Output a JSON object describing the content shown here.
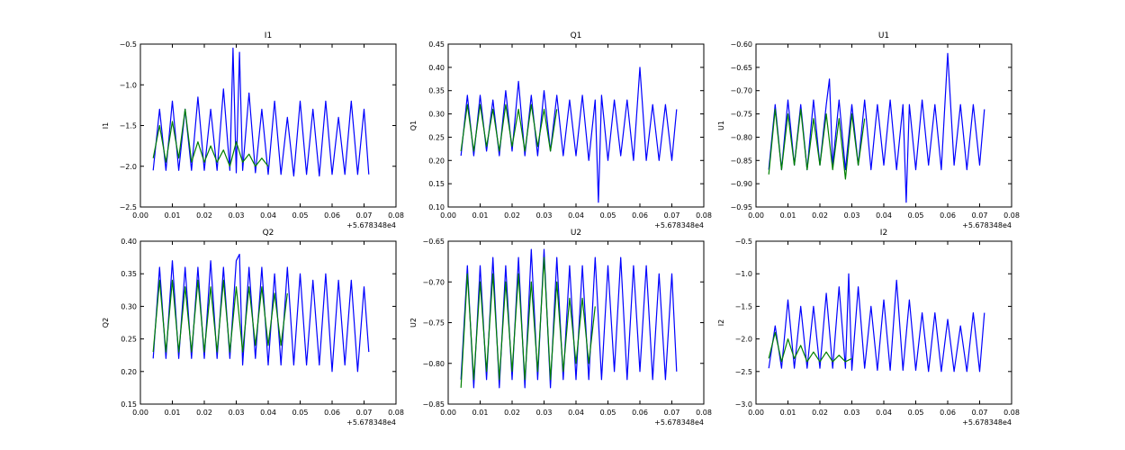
{
  "figure": {
    "background": "#ffffff"
  },
  "chart_data": [
    {
      "type": "line",
      "title": "I1",
      "ylabel": "I1",
      "xlim": [
        0.0,
        0.08
      ],
      "ylim": [
        -2.5,
        -0.5
      ],
      "xticks": [
        0.0,
        0.01,
        0.02,
        0.03,
        0.04,
        0.05,
        0.06,
        0.07,
        0.08
      ],
      "xtick_labels": [
        "0.00",
        "0.01",
        "0.02",
        "0.03",
        "0.04",
        "0.05",
        "0.06",
        "0.07",
        "0.08"
      ],
      "yticks": [
        -2.5,
        -2.0,
        -1.5,
        -1.0,
        -0.5
      ],
      "ytick_labels": [
        "−2.5",
        "−2.0",
        "−1.5",
        "−1.0",
        "−0.5"
      ],
      "x_offset_label": "+5.678348e4",
      "series": [
        {
          "color": "#0000ff",
          "x": [
            0.004,
            0.006,
            0.008,
            0.01,
            0.012,
            0.014,
            0.016,
            0.018,
            0.02,
            0.022,
            0.024,
            0.026,
            0.028,
            0.029,
            0.03,
            0.031,
            0.032,
            0.034,
            0.036,
            0.038,
            0.04,
            0.042,
            0.044,
            0.046,
            0.048,
            0.05,
            0.052,
            0.054,
            0.056,
            0.058,
            0.06,
            0.062,
            0.064,
            0.066,
            0.068,
            0.07,
            0.0715
          ],
          "y": [
            -2.05,
            -1.3,
            -2.05,
            -1.2,
            -2.05,
            -1.3,
            -2.05,
            -1.15,
            -2.05,
            -1.3,
            -2.05,
            -1.05,
            -2.05,
            -0.55,
            -2.08,
            -0.6,
            -2.05,
            -1.1,
            -2.08,
            -1.3,
            -2.1,
            -1.2,
            -2.1,
            -1.4,
            -2.12,
            -1.2,
            -2.1,
            -1.3,
            -2.12,
            -1.2,
            -2.1,
            -1.4,
            -2.1,
            -1.2,
            -2.1,
            -1.3,
            -2.1
          ]
        },
        {
          "color": "#008000",
          "x": [
            0.004,
            0.006,
            0.008,
            0.01,
            0.012,
            0.014,
            0.016,
            0.018,
            0.02,
            0.022,
            0.024,
            0.026,
            0.028,
            0.03,
            0.032,
            0.034,
            0.036,
            0.038,
            0.04
          ],
          "y": [
            -1.9,
            -1.5,
            -1.95,
            -1.45,
            -1.9,
            -1.3,
            -1.95,
            -1.7,
            -1.95,
            -1.75,
            -1.95,
            -1.8,
            -2.0,
            -1.7,
            -1.95,
            -1.85,
            -2.0,
            -1.9,
            -2.0
          ]
        }
      ]
    },
    {
      "type": "line",
      "title": "Q1",
      "ylabel": "Q1",
      "xlim": [
        0.0,
        0.08
      ],
      "ylim": [
        0.1,
        0.45
      ],
      "xticks": [
        0.0,
        0.01,
        0.02,
        0.03,
        0.04,
        0.05,
        0.06,
        0.07,
        0.08
      ],
      "xtick_labels": [
        "0.00",
        "0.01",
        "0.02",
        "0.03",
        "0.04",
        "0.05",
        "0.06",
        "0.07",
        "0.08"
      ],
      "yticks": [
        0.1,
        0.15,
        0.2,
        0.25,
        0.3,
        0.35,
        0.4,
        0.45
      ],
      "ytick_labels": [
        "0.10",
        "0.15",
        "0.20",
        "0.25",
        "0.30",
        "0.35",
        "0.40",
        "0.45"
      ],
      "x_offset_label": "+5.678348e4",
      "series": [
        {
          "color": "#0000ff",
          "x": [
            0.004,
            0.006,
            0.008,
            0.01,
            0.012,
            0.014,
            0.016,
            0.018,
            0.02,
            0.022,
            0.024,
            0.026,
            0.028,
            0.03,
            0.032,
            0.034,
            0.036,
            0.038,
            0.04,
            0.042,
            0.044,
            0.046,
            0.047,
            0.048,
            0.05,
            0.052,
            0.054,
            0.056,
            0.058,
            0.06,
            0.062,
            0.064,
            0.066,
            0.068,
            0.07,
            0.0715
          ],
          "y": [
            0.21,
            0.34,
            0.21,
            0.34,
            0.22,
            0.33,
            0.21,
            0.35,
            0.22,
            0.37,
            0.21,
            0.34,
            0.21,
            0.35,
            0.22,
            0.34,
            0.21,
            0.33,
            0.21,
            0.34,
            0.2,
            0.33,
            0.11,
            0.34,
            0.2,
            0.33,
            0.21,
            0.33,
            0.2,
            0.4,
            0.2,
            0.32,
            0.2,
            0.32,
            0.2,
            0.31
          ]
        },
        {
          "color": "#008000",
          "x": [
            0.004,
            0.006,
            0.008,
            0.01,
            0.012,
            0.014,
            0.016,
            0.018,
            0.02,
            0.022,
            0.024,
            0.026,
            0.028,
            0.03,
            0.032,
            0.034
          ],
          "y": [
            0.22,
            0.32,
            0.22,
            0.32,
            0.23,
            0.31,
            0.22,
            0.32,
            0.23,
            0.31,
            0.22,
            0.32,
            0.23,
            0.31,
            0.22,
            0.31
          ]
        }
      ]
    },
    {
      "type": "line",
      "title": "U1",
      "ylabel": "U1",
      "xlim": [
        0.0,
        0.08
      ],
      "ylim": [
        -0.95,
        -0.6
      ],
      "xticks": [
        0.0,
        0.01,
        0.02,
        0.03,
        0.04,
        0.05,
        0.06,
        0.07,
        0.08
      ],
      "xtick_labels": [
        "0.00",
        "0.01",
        "0.02",
        "0.03",
        "0.04",
        "0.05",
        "0.06",
        "0.07",
        "0.08"
      ],
      "yticks": [
        -0.95,
        -0.9,
        -0.85,
        -0.8,
        -0.75,
        -0.7,
        -0.65,
        -0.6
      ],
      "ytick_labels": [
        "−0.95",
        "−0.90",
        "−0.85",
        "−0.80",
        "−0.75",
        "−0.70",
        "−0.65",
        "−0.60"
      ],
      "x_offset_label": "+5.678348e4",
      "series": [
        {
          "color": "#0000ff",
          "x": [
            0.004,
            0.006,
            0.008,
            0.01,
            0.012,
            0.014,
            0.016,
            0.018,
            0.02,
            0.022,
            0.023,
            0.024,
            0.026,
            0.028,
            0.03,
            0.032,
            0.034,
            0.036,
            0.038,
            0.04,
            0.042,
            0.044,
            0.046,
            0.047,
            0.048,
            0.05,
            0.052,
            0.054,
            0.056,
            0.058,
            0.06,
            0.062,
            0.064,
            0.066,
            0.068,
            0.07,
            0.0715
          ],
          "y": [
            -0.87,
            -0.73,
            -0.87,
            -0.72,
            -0.86,
            -0.73,
            -0.87,
            -0.72,
            -0.86,
            -0.73,
            -0.675,
            -0.86,
            -0.72,
            -0.87,
            -0.73,
            -0.86,
            -0.72,
            -0.87,
            -0.73,
            -0.86,
            -0.72,
            -0.87,
            -0.73,
            -0.94,
            -0.73,
            -0.87,
            -0.72,
            -0.86,
            -0.73,
            -0.87,
            -0.62,
            -0.86,
            -0.73,
            -0.87,
            -0.73,
            -0.86,
            -0.74
          ]
        },
        {
          "color": "#008000",
          "x": [
            0.004,
            0.006,
            0.008,
            0.01,
            0.012,
            0.014,
            0.016,
            0.018,
            0.02,
            0.022,
            0.024,
            0.026,
            0.028,
            0.03,
            0.032,
            0.034
          ],
          "y": [
            -0.88,
            -0.74,
            -0.87,
            -0.75,
            -0.86,
            -0.74,
            -0.87,
            -0.76,
            -0.86,
            -0.75,
            -0.87,
            -0.76,
            -0.89,
            -0.75,
            -0.86,
            -0.76
          ]
        }
      ]
    },
    {
      "type": "line",
      "title": "Q2",
      "ylabel": "Q2",
      "xlim": [
        0.0,
        0.08
      ],
      "ylim": [
        0.15,
        0.4
      ],
      "xticks": [
        0.0,
        0.01,
        0.02,
        0.03,
        0.04,
        0.05,
        0.06,
        0.07,
        0.08
      ],
      "xtick_labels": [
        "0.00",
        "0.01",
        "0.02",
        "0.03",
        "0.04",
        "0.05",
        "0.06",
        "0.07",
        "0.08"
      ],
      "yticks": [
        0.15,
        0.2,
        0.25,
        0.3,
        0.35,
        0.4
      ],
      "ytick_labels": [
        "0.15",
        "0.20",
        "0.25",
        "0.30",
        "0.35",
        "0.40"
      ],
      "x_offset_label": "+5.678348e4",
      "series": [
        {
          "color": "#0000ff",
          "x": [
            0.004,
            0.006,
            0.008,
            0.01,
            0.012,
            0.014,
            0.016,
            0.018,
            0.02,
            0.022,
            0.024,
            0.026,
            0.028,
            0.03,
            0.031,
            0.032,
            0.034,
            0.036,
            0.038,
            0.04,
            0.042,
            0.044,
            0.046,
            0.048,
            0.05,
            0.052,
            0.054,
            0.056,
            0.058,
            0.06,
            0.062,
            0.064,
            0.066,
            0.068,
            0.07,
            0.0715
          ],
          "y": [
            0.22,
            0.36,
            0.22,
            0.37,
            0.22,
            0.36,
            0.22,
            0.36,
            0.22,
            0.37,
            0.22,
            0.36,
            0.22,
            0.37,
            0.38,
            0.21,
            0.36,
            0.22,
            0.36,
            0.21,
            0.35,
            0.21,
            0.36,
            0.21,
            0.35,
            0.21,
            0.34,
            0.21,
            0.35,
            0.2,
            0.34,
            0.21,
            0.34,
            0.2,
            0.33,
            0.23
          ]
        },
        {
          "color": "#008000",
          "x": [
            0.004,
            0.006,
            0.008,
            0.01,
            0.012,
            0.014,
            0.016,
            0.018,
            0.02,
            0.022,
            0.024,
            0.026,
            0.028,
            0.03,
            0.032,
            0.034,
            0.036,
            0.038,
            0.04,
            0.042,
            0.044,
            0.046
          ],
          "y": [
            0.23,
            0.34,
            0.23,
            0.34,
            0.23,
            0.33,
            0.23,
            0.34,
            0.23,
            0.33,
            0.23,
            0.34,
            0.23,
            0.33,
            0.23,
            0.33,
            0.24,
            0.33,
            0.24,
            0.32,
            0.24,
            0.32
          ]
        }
      ]
    },
    {
      "type": "line",
      "title": "U2",
      "ylabel": "U2",
      "xlim": [
        0.0,
        0.08
      ],
      "ylim": [
        -0.85,
        -0.65
      ],
      "xticks": [
        0.0,
        0.01,
        0.02,
        0.03,
        0.04,
        0.05,
        0.06,
        0.07,
        0.08
      ],
      "xtick_labels": [
        "0.00",
        "0.01",
        "0.02",
        "0.03",
        "0.04",
        "0.05",
        "0.06",
        "0.07",
        "0.08"
      ],
      "yticks": [
        -0.85,
        -0.8,
        -0.75,
        -0.7,
        -0.65
      ],
      "ytick_labels": [
        "−0.85",
        "−0.80",
        "−0.75",
        "−0.70",
        "−0.65"
      ],
      "x_offset_label": "+5.678348e4",
      "series": [
        {
          "color": "#0000ff",
          "x": [
            0.004,
            0.006,
            0.008,
            0.01,
            0.012,
            0.014,
            0.016,
            0.018,
            0.02,
            0.022,
            0.024,
            0.026,
            0.028,
            0.03,
            0.032,
            0.034,
            0.036,
            0.038,
            0.04,
            0.042,
            0.044,
            0.046,
            0.048,
            0.05,
            0.052,
            0.054,
            0.056,
            0.058,
            0.06,
            0.062,
            0.064,
            0.066,
            0.068,
            0.07,
            0.0715
          ],
          "y": [
            -0.82,
            -0.68,
            -0.83,
            -0.68,
            -0.82,
            -0.67,
            -0.83,
            -0.68,
            -0.82,
            -0.67,
            -0.83,
            -0.66,
            -0.82,
            -0.66,
            -0.83,
            -0.67,
            -0.82,
            -0.68,
            -0.82,
            -0.68,
            -0.82,
            -0.67,
            -0.82,
            -0.68,
            -0.81,
            -0.67,
            -0.82,
            -0.68,
            -0.81,
            -0.68,
            -0.82,
            -0.69,
            -0.82,
            -0.69,
            -0.81
          ]
        },
        {
          "color": "#008000",
          "x": [
            0.004,
            0.006,
            0.008,
            0.01,
            0.012,
            0.014,
            0.016,
            0.018,
            0.02,
            0.022,
            0.024,
            0.026,
            0.028,
            0.03,
            0.032,
            0.034,
            0.036,
            0.038,
            0.04,
            0.042,
            0.044,
            0.046
          ],
          "y": [
            -0.83,
            -0.69,
            -0.82,
            -0.7,
            -0.81,
            -0.69,
            -0.82,
            -0.7,
            -0.81,
            -0.69,
            -0.82,
            -0.7,
            -0.81,
            -0.67,
            -0.82,
            -0.7,
            -0.81,
            -0.72,
            -0.8,
            -0.72,
            -0.8,
            -0.73
          ]
        }
      ]
    },
    {
      "type": "line",
      "title": "I2",
      "ylabel": "I2",
      "xlim": [
        0.0,
        0.08
      ],
      "ylim": [
        -3.0,
        -0.5
      ],
      "xticks": [
        0.0,
        0.01,
        0.02,
        0.03,
        0.04,
        0.05,
        0.06,
        0.07,
        0.08
      ],
      "xtick_labels": [
        "0.00",
        "0.01",
        "0.02",
        "0.03",
        "0.04",
        "0.05",
        "0.06",
        "0.07",
        "0.08"
      ],
      "yticks": [
        -3.0,
        -2.5,
        -2.0,
        -1.5,
        -1.0,
        -0.5
      ],
      "ytick_labels": [
        "−3.0",
        "−2.5",
        "−2.0",
        "−1.5",
        "−1.0",
        "−0.5"
      ],
      "x_offset_label": "+5.678348e4",
      "series": [
        {
          "color": "#0000ff",
          "x": [
            0.004,
            0.006,
            0.008,
            0.01,
            0.012,
            0.014,
            0.016,
            0.018,
            0.02,
            0.022,
            0.024,
            0.026,
            0.028,
            0.029,
            0.03,
            0.032,
            0.034,
            0.036,
            0.038,
            0.04,
            0.042,
            0.044,
            0.046,
            0.048,
            0.05,
            0.052,
            0.054,
            0.056,
            0.058,
            0.06,
            0.062,
            0.064,
            0.066,
            0.068,
            0.07,
            0.0715
          ],
          "y": [
            -2.45,
            -1.8,
            -2.45,
            -1.4,
            -2.45,
            -1.5,
            -2.45,
            -1.5,
            -2.45,
            -1.3,
            -2.45,
            -1.2,
            -2.45,
            -1.0,
            -2.48,
            -1.2,
            -2.45,
            -1.5,
            -2.48,
            -1.4,
            -2.48,
            -1.1,
            -2.48,
            -1.4,
            -2.48,
            -1.6,
            -2.5,
            -1.6,
            -2.5,
            -1.7,
            -2.5,
            -1.8,
            -2.5,
            -1.6,
            -2.5,
            -1.6
          ]
        },
        {
          "color": "#008000",
          "x": [
            0.004,
            0.006,
            0.008,
            0.01,
            0.012,
            0.014,
            0.016,
            0.018,
            0.02,
            0.022,
            0.024,
            0.026,
            0.028,
            0.03
          ],
          "y": [
            -2.3,
            -1.9,
            -2.35,
            -2.0,
            -2.3,
            -2.1,
            -2.35,
            -2.2,
            -2.35,
            -2.2,
            -2.35,
            -2.25,
            -2.35,
            -2.3
          ]
        }
      ]
    }
  ]
}
